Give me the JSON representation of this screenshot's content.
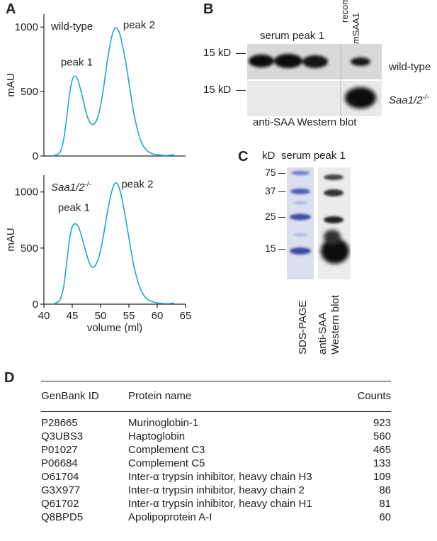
{
  "panels": {
    "A": "A",
    "B": "B",
    "C": "C",
    "D": "D"
  },
  "panelA": {
    "charts": [
      {
        "type": "line",
        "title": "wild-type",
        "title_italic": false,
        "ylabel": "mAU",
        "xlabel": "",
        "xlim": [
          40,
          65
        ],
        "ylim": [
          0,
          1100
        ],
        "yticks": [
          0,
          500,
          1000
        ],
        "xticks": [],
        "x": [
          41.5,
          42.5,
          43,
          43.5,
          44,
          44.5,
          45,
          45.5,
          46,
          46.5,
          47,
          47.5,
          48,
          48.5,
          49,
          49.5,
          50,
          50.5,
          51,
          51.5,
          52,
          52.5,
          53,
          53.5,
          54,
          54.5,
          55,
          55.5,
          56,
          57,
          58,
          59,
          60,
          61,
          62,
          63
        ],
        "y": [
          0,
          15,
          45,
          130,
          290,
          470,
          590,
          620,
          590,
          510,
          420,
          330,
          270,
          245,
          255,
          300,
          390,
          520,
          680,
          820,
          930,
          990,
          985,
          930,
          830,
          710,
          570,
          430,
          300,
          130,
          50,
          20,
          10,
          5,
          5,
          10
        ],
        "annotations": [
          {
            "text": "peak 1",
            "x": 45.8,
            "y": 700
          },
          {
            "text": "peak 2",
            "x": 56.8,
            "y": 990
          }
        ],
        "color": "#1aa7d6"
      },
      {
        "type": "line",
        "title": "Saa1/2",
        "title_sup": "-/-",
        "title_italic": true,
        "ylabel": "mAU",
        "xlabel": "volume (ml)",
        "xlim": [
          40,
          65
        ],
        "ylim": [
          0,
          1150
        ],
        "yticks": [
          0,
          500,
          1000
        ],
        "xticks": [
          40,
          45,
          50,
          55,
          60,
          65
        ],
        "x": [
          41.5,
          42.5,
          43,
          43.5,
          44,
          44.5,
          45,
          45.5,
          46,
          46.5,
          47,
          47.5,
          48,
          48.5,
          49,
          49.5,
          50,
          50.5,
          51,
          51.5,
          52,
          52.5,
          53,
          53.5,
          54,
          54.5,
          55,
          55.5,
          56,
          57,
          58,
          59,
          60,
          61,
          62,
          63
        ],
        "y": [
          0,
          20,
          60,
          160,
          360,
          570,
          690,
          715,
          700,
          630,
          540,
          450,
          370,
          330,
          340,
          390,
          480,
          610,
          760,
          900,
          1010,
          1075,
          1070,
          1000,
          880,
          740,
          590,
          440,
          310,
          140,
          55,
          25,
          12,
          6,
          5,
          10
        ],
        "annotations": [
          {
            "text": "peak 1",
            "x": 45.3,
            "y": 830
          },
          {
            "text": "peak 2",
            "x": 56.5,
            "y": 1040
          }
        ],
        "color": "#1aa7d6"
      }
    ]
  },
  "panelB": {
    "header": "serum peak 1",
    "recomb_line1": "recomb.",
    "recomb_line2": "mSAA1",
    "marker1": "15 kD",
    "marker2": "15 kD",
    "row1_label": "wild-type",
    "row2_label": "Saa1/2",
    "row2_sup": "-/-",
    "caption": "anti-SAA Western blot"
  },
  "panelC": {
    "kd": "kD",
    "header": "serum peak 1",
    "markers": [
      "75",
      "37",
      "25",
      "15"
    ],
    "lane1": "SDS-PAGE",
    "lane2_line1": "anti-SAA",
    "lane2_line2": "Western blot"
  },
  "table": {
    "headers": [
      "GenBank ID",
      "Protein name",
      "Counts"
    ],
    "rows": [
      [
        "P28665",
        "Murinoglobin-1",
        "923"
      ],
      [
        "Q3UBS3",
        "Haptoglobin",
        "560"
      ],
      [
        "P01027",
        "Complement C3",
        "465"
      ],
      [
        "P06684",
        "Complement C5",
        "133"
      ],
      [
        "O61704",
        "Inter-α trypsin inhibitor, heavy chain H3",
        "109"
      ],
      [
        "G3X977",
        "Inter-α trypsin inhibitor, heavy chain 2",
        "86"
      ],
      [
        "Q61702",
        "Inter-α trypsin inhibitor, heavy chain H1",
        "81"
      ],
      [
        "Q8BPD5",
        "Apolipoprotein A-I",
        "60"
      ]
    ]
  }
}
